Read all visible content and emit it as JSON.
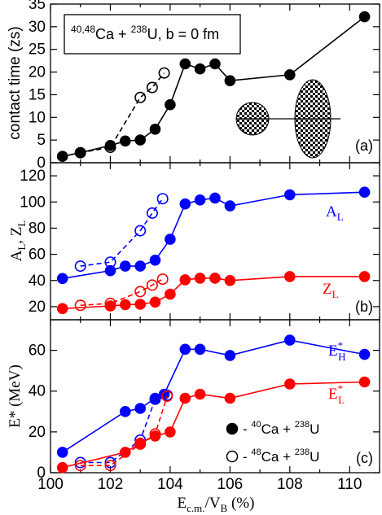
{
  "chart_data": [
    {
      "type": "line",
      "panel_tag": "(a)",
      "ylabel": "contact time (zs)",
      "annotation": {
        "pre": "40,48",
        "mid": "Ca + ",
        "pre2": "238",
        "post": "U, b = 0 fm"
      },
      "xlim": [
        100,
        111
      ],
      "ylim": [
        0,
        35
      ],
      "yticks": [
        0,
        5,
        10,
        15,
        20,
        25,
        30,
        35
      ],
      "series": [
        {
          "style": "filled",
          "color": "#000000",
          "dash": false,
          "x": [
            100.4,
            101.0,
            102.0,
            102.5,
            103.0,
            103.5,
            104.0,
            104.5,
            105.0,
            105.5,
            106.0,
            108.0,
            110.5
          ],
          "y": [
            1.4,
            2.2,
            3.8,
            4.8,
            5.0,
            7.4,
            12.8,
            21.8,
            20.7,
            21.8,
            18.1,
            19.4,
            32.2
          ]
        },
        {
          "style": "open",
          "color": "#000000",
          "dash": true,
          "x": [
            101.0,
            102.0,
            103.0,
            103.4,
            103.8
          ],
          "y": [
            2.2,
            3.4,
            14.4,
            16.6,
            19.8
          ]
        }
      ],
      "grid": false
    },
    {
      "type": "line",
      "panel_tag": "(b)",
      "ylabel": {
        "main": "A",
        "sub1": "L",
        "sep": ", Z",
        "sub2": "L"
      },
      "xlim": [
        100,
        111
      ],
      "ylim": [
        10,
        130
      ],
      "yticks": [
        20,
        40,
        60,
        80,
        100,
        120
      ],
      "series_labels": [
        {
          "main": "A",
          "sub": "L",
          "color": "#0000ff"
        },
        {
          "main": "Z",
          "sub": "L",
          "color": "#ff0000"
        }
      ],
      "series": [
        {
          "style": "filled",
          "color": "#0000ff",
          "dash": false,
          "x": [
            100.4,
            102.0,
            102.5,
            103.0,
            103.5,
            104.0,
            104.5,
            105.0,
            105.5,
            106.0,
            108.0,
            110.5
          ],
          "y": [
            41.5,
            47.5,
            51,
            51,
            55.5,
            71.5,
            98.5,
            101.5,
            103,
            97,
            105.5,
            107.5
          ]
        },
        {
          "style": "open",
          "color": "#0000ff",
          "dash": true,
          "x": [
            101.0,
            102.0,
            103.0,
            103.4,
            103.75
          ],
          "y": [
            51,
            54,
            78,
            91.5,
            102.5
          ]
        },
        {
          "style": "filled",
          "color": "#ff0000",
          "dash": false,
          "x": [
            100.4,
            102.0,
            102.5,
            103.0,
            103.5,
            104.0,
            104.5,
            105.0,
            105.5,
            106.0,
            108.0,
            110.5
          ],
          "y": [
            18.5,
            20.5,
            21.5,
            21.8,
            23.5,
            29.5,
            40.5,
            41.8,
            41.8,
            40,
            43,
            43
          ]
        },
        {
          "style": "open",
          "color": "#ff0000",
          "dash": true,
          "x": [
            101.0,
            102.0,
            103.0,
            103.4,
            103.75
          ],
          "y": [
            21,
            22.5,
            31.5,
            36.5,
            41
          ]
        }
      ],
      "grid": false
    },
    {
      "type": "line",
      "panel_tag": "(c)",
      "ylabel": "E* (MeV)",
      "xlabel": {
        "pre": "E",
        "sub1": "c.m.",
        "mid": "/V",
        "sub2": "B",
        "post": " (%)"
      },
      "xlim": [
        100,
        111
      ],
      "ylim": [
        0,
        75
      ],
      "yticks": [
        0,
        20,
        40,
        60
      ],
      "xticks": [
        100,
        102,
        104,
        106,
        108,
        110
      ],
      "series_labels": [
        {
          "main": "E",
          "sup": "*",
          "sub": "H",
          "color": "#0000ff"
        },
        {
          "main": "E",
          "sup": "*",
          "sub": "L",
          "color": "#ff0000"
        }
      ],
      "legend": {
        "placement": "bottom-right",
        "entries": [
          {
            "marker": "filled",
            "dash": "- ",
            "pre1": "40",
            "t1": "Ca + ",
            "pre2": "238",
            "t2": "U"
          },
          {
            "marker": "open",
            "dash": "- ",
            "pre1": "48",
            "t1": "Ca + ",
            "pre2": "238",
            "t2": "U"
          }
        ]
      },
      "series": [
        {
          "style": "filled",
          "color": "#0000ff",
          "dash": false,
          "x": [
            100.4,
            102.5,
            103.0,
            103.5,
            103.8,
            104.5,
            105.0,
            106.0,
            108.0,
            110.5
          ],
          "y": [
            10,
            30,
            31.5,
            36.5,
            38.5,
            60.5,
            60.5,
            57.5,
            65,
            58
          ]
        },
        {
          "style": "open",
          "color": "#0000ff",
          "dash": true,
          "x": [
            101.0,
            102.0,
            103.0,
            103.5,
            103.9
          ],
          "y": [
            5,
            5,
            16,
            36,
            38
          ]
        },
        {
          "style": "filled",
          "color": "#ff0000",
          "dash": false,
          "x": [
            100.4,
            102.5,
            103.0,
            103.5,
            104.0,
            104.5,
            105.0,
            106.0,
            108.0,
            110.5
          ],
          "y": [
            2.5,
            10,
            14.5,
            18,
            20,
            36.5,
            38.5,
            36.5,
            43.5,
            44.5
          ]
        },
        {
          "style": "open",
          "color": "#ff0000",
          "dash": true,
          "x": [
            101.0,
            102.0,
            103.0,
            103.5,
            103.9
          ],
          "y": [
            3.5,
            3.5,
            14,
            19,
            37.5
          ]
        }
      ],
      "grid": false
    }
  ]
}
